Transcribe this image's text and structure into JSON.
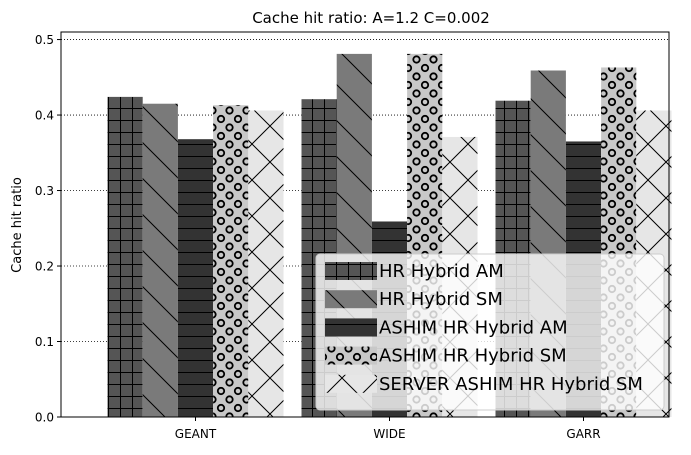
{
  "chart_data": {
    "type": "bar",
    "title": "Cache hit ratio: A=1.2 C=0.002",
    "xlabel": "",
    "ylabel": "Cache hit ratio",
    "categories": [
      "GEANT",
      "WIDE",
      "GARR"
    ],
    "ylim": [
      0,
      0.51
    ],
    "yticks": [
      0.0,
      0.1,
      0.2,
      0.3,
      0.4,
      0.5
    ],
    "ytick_labels": [
      "0.0",
      "0.1",
      "0.2",
      "0.3",
      "0.4",
      "0.5"
    ],
    "grid": "horizontal dotted",
    "legend_position": "bottom-right",
    "series": [
      {
        "name": "HR Hybrid AM",
        "values": [
          0.424,
          0.421,
          0.419
        ],
        "color": "#555555",
        "pattern": "grid"
      },
      {
        "name": "HR Hybrid SM",
        "values": [
          0.415,
          0.481,
          0.459
        ],
        "color": "#7a7a7a",
        "pattern": "backslash"
      },
      {
        "name": "ASHIM HR Hybrid AM",
        "values": [
          0.368,
          0.259,
          0.365
        ],
        "color": "#333333",
        "pattern": "horizontal"
      },
      {
        "name": "ASHIM HR Hybrid SM",
        "values": [
          0.413,
          0.481,
          0.463
        ],
        "color": "#c8c8c8",
        "pattern": "circles"
      },
      {
        "name": "SERVER ASHIM HR Hybrid SM",
        "values": [
          0.406,
          0.371,
          0.406
        ],
        "color": "#e6e6e6",
        "pattern": "cross"
      }
    ]
  }
}
